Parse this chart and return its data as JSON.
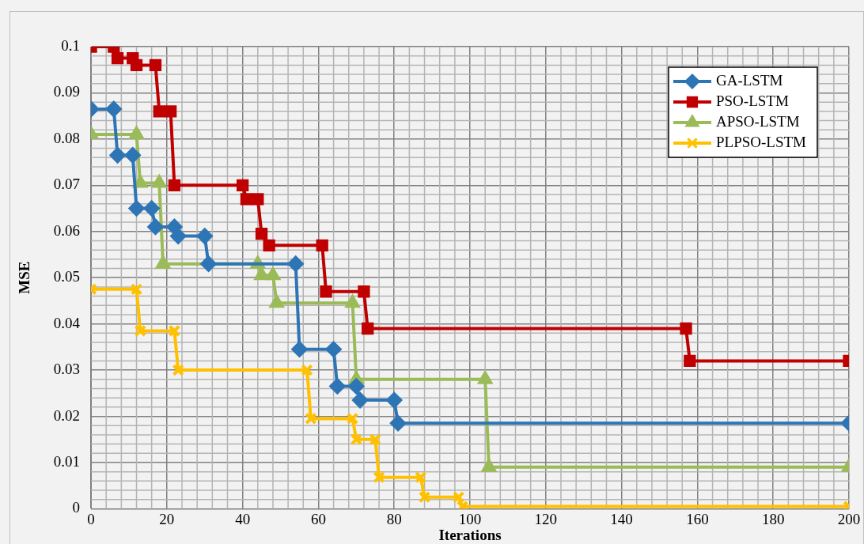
{
  "chart_data": {
    "type": "line",
    "xlabel": "Iterations",
    "ylabel": "MSE",
    "xlim": [
      0,
      200
    ],
    "xticks": [
      0,
      20,
      40,
      60,
      80,
      100,
      120,
      140,
      160,
      180,
      200
    ],
    "ylim": [
      0,
      0.1
    ],
    "yticks": [
      0,
      0.01,
      0.02,
      0.03,
      0.04,
      0.05,
      0.06,
      0.07,
      0.08,
      0.09,
      0.1
    ],
    "grid": true,
    "legend": "top right",
    "series": [
      {
        "name": "GA-LSTM",
        "color": "#2e75b6",
        "marker": "diamond",
        "x": [
          0,
          6,
          7,
          11,
          12,
          16,
          17,
          22,
          23,
          30,
          31,
          54,
          55,
          64,
          65,
          70,
          71,
          80,
          81,
          200
        ],
        "values": [
          0.0865,
          0.0865,
          0.0765,
          0.0765,
          0.065,
          0.065,
          0.061,
          0.061,
          0.059,
          0.059,
          0.053,
          0.053,
          0.0345,
          0.0345,
          0.0265,
          0.0265,
          0.0235,
          0.0235,
          0.0185,
          0.0185
        ]
      },
      {
        "name": "PSO-LSTM",
        "color": "#c00000",
        "marker": "square",
        "x": [
          0,
          6,
          7,
          11,
          12,
          17,
          18,
          21,
          22,
          40,
          41,
          44,
          45,
          47,
          61,
          62,
          72,
          73,
          157,
          158,
          200
        ],
        "values": [
          0.1,
          0.1,
          0.0975,
          0.0975,
          0.096,
          0.096,
          0.086,
          0.086,
          0.07,
          0.07,
          0.067,
          0.067,
          0.0595,
          0.057,
          0.057,
          0.047,
          0.047,
          0.039,
          0.039,
          0.032,
          0.032
        ]
      },
      {
        "name": "APSO-LSTM",
        "color": "#9bbb59",
        "marker": "triangle",
        "x": [
          0,
          12,
          13,
          18,
          19,
          44,
          45,
          48,
          49,
          69,
          70,
          104,
          105,
          200
        ],
        "values": [
          0.081,
          0.081,
          0.0705,
          0.0705,
          0.053,
          0.053,
          0.0505,
          0.0505,
          0.0445,
          0.0445,
          0.028,
          0.028,
          0.009,
          0.009
        ]
      },
      {
        "name": "PLPSO-LSTM",
        "color": "#ffc000",
        "marker": "cross",
        "x": [
          0,
          12,
          13,
          22,
          23,
          57,
          58,
          69,
          70,
          75,
          76,
          87,
          88,
          97,
          98,
          200
        ],
        "values": [
          0.0475,
          0.0475,
          0.0385,
          0.0385,
          0.03,
          0.03,
          0.0195,
          0.0195,
          0.015,
          0.015,
          0.0068,
          0.0068,
          0.0025,
          0.0025,
          0.0005,
          0.0005
        ]
      }
    ]
  }
}
